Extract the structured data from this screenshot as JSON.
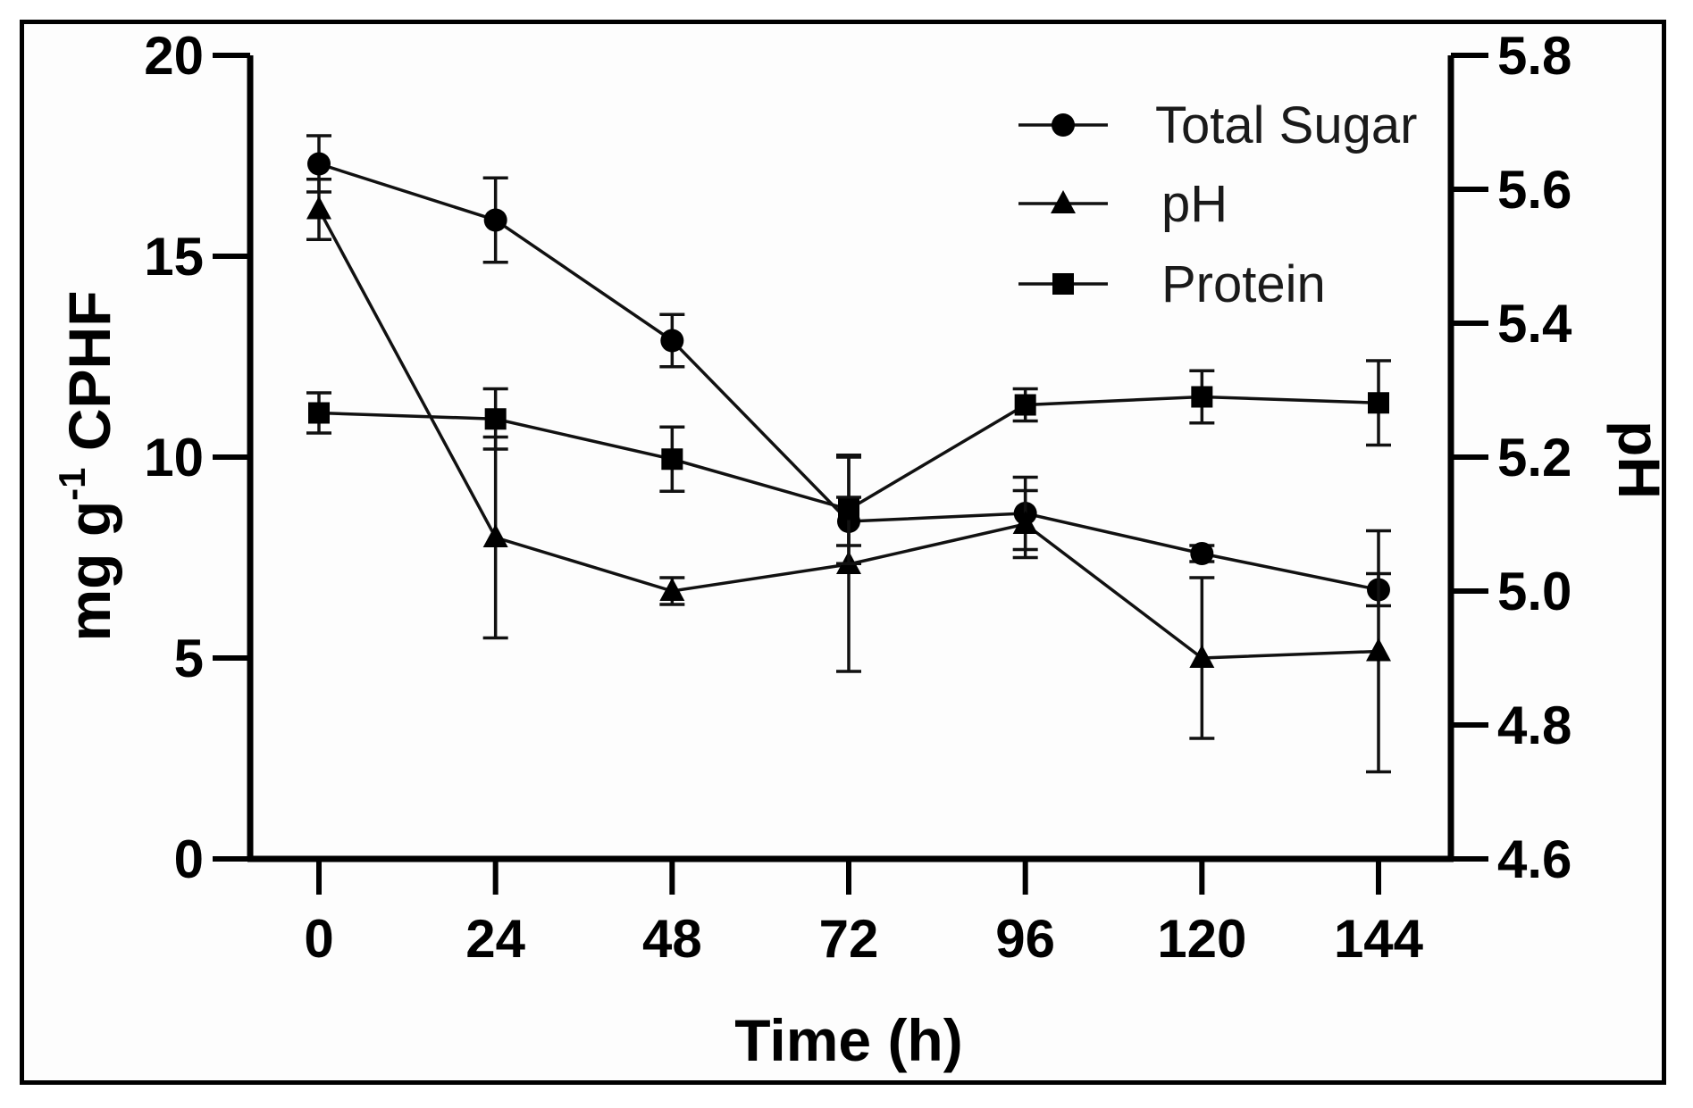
{
  "chart_data": {
    "type": "line",
    "title": "",
    "xlabel": "Time (h)",
    "ylabel": {
      "main": "mg g",
      "sup": "-1",
      "rest": " CPHF"
    },
    "y2label": "pH",
    "x": [
      0,
      24,
      48,
      72,
      96,
      120,
      144
    ],
    "x_tick_labels": [
      "0",
      "24",
      "48",
      "72",
      "96",
      "120",
      "144"
    ],
    "ylim": [
      0,
      20
    ],
    "y_ticks": [
      0,
      5,
      10,
      15,
      20
    ],
    "y_tick_labels": [
      "0",
      "5",
      "10",
      "15",
      "20"
    ],
    "y2lim": [
      4.6,
      5.8
    ],
    "y2_ticks": [
      4.6,
      4.8,
      5.0,
      5.2,
      5.4,
      5.6,
      5.8
    ],
    "y2_tick_labels": [
      "4.6",
      "4.8",
      "5.0",
      "5.2",
      "5.4",
      "5.6",
      "5.8"
    ],
    "legend_position": "top-right",
    "series": [
      {
        "name": "Total Sugar",
        "marker": "circle",
        "axis": "left",
        "values": [
          17.3,
          15.9,
          12.9,
          8.4,
          8.6,
          7.6,
          6.7
        ],
        "errors": [
          0.7,
          1.05,
          0.65,
          0.6,
          0.9,
          0.2,
          0.4
        ]
      },
      {
        "name": "pH",
        "marker": "triangle",
        "axis": "right",
        "values": [
          5.57,
          5.08,
          5.0,
          5.04,
          5.1,
          4.9,
          4.91
        ],
        "errors": [
          0.045,
          0.15,
          0.02,
          0.16,
          0.05,
          0.12,
          0.18
        ]
      },
      {
        "name": "Protein",
        "marker": "square",
        "axis": "left",
        "values": [
          11.1,
          10.95,
          9.95,
          8.7,
          11.3,
          11.5,
          11.35
        ],
        "errors": [
          0.5,
          0.75,
          0.8,
          1.35,
          0.4,
          0.65,
          1.05
        ]
      }
    ]
  }
}
